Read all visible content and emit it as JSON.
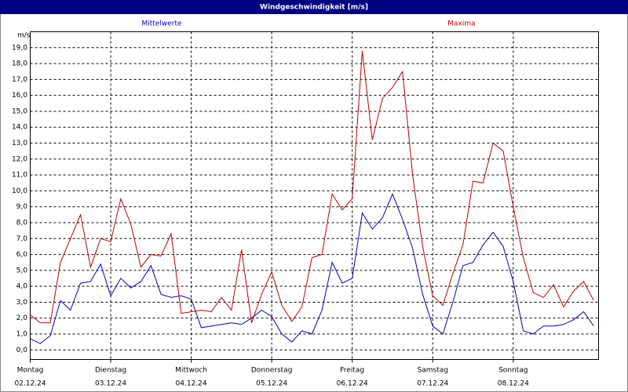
{
  "chart_data": {
    "type": "line",
    "title": "Windgeschwindigkeit [m/s]",
    "y_label": "m/s",
    "x": [
      0,
      0.125,
      0.25,
      0.375,
      0.5,
      0.625,
      0.75,
      0.875,
      1,
      1.125,
      1.25,
      1.375,
      1.5,
      1.625,
      1.75,
      1.875,
      2,
      2.125,
      2.25,
      2.375,
      2.5,
      2.625,
      2.75,
      2.875,
      3,
      3.125,
      3.25,
      3.375,
      3.5,
      3.625,
      3.75,
      3.875,
      4,
      4.125,
      4.25,
      4.375,
      4.5,
      4.625,
      4.75,
      4.875,
      5,
      5.125,
      5.25,
      5.375,
      5.5,
      5.625,
      5.75,
      5.875,
      6,
      6.125,
      6.25,
      6.375,
      6.5,
      6.625,
      6.75,
      6.875,
      7
    ],
    "series": [
      {
        "name": "Mittelwerte",
        "color": "#0000c0",
        "values": [
          0.7,
          0.4,
          0.9,
          3.1,
          2.5,
          4.2,
          4.3,
          5.4,
          3.4,
          4.5,
          3.9,
          4.3,
          5.3,
          3.5,
          3.3,
          3.4,
          3.2,
          1.4,
          1.5,
          1.6,
          1.7,
          1.6,
          2.0,
          2.5,
          2.1,
          1.0,
          0.5,
          1.2,
          1.0,
          2.5,
          5.5,
          4.2,
          4.5,
          8.6,
          7.6,
          8.3,
          9.8,
          8.2,
          6.4,
          3.5,
          1.5,
          1.0,
          3.0,
          5.3,
          5.5,
          6.6,
          7.4,
          6.5,
          4.3,
          1.2,
          1.0,
          1.5,
          1.5,
          1.6,
          1.9,
          2.4,
          1.5
        ]
      },
      {
        "name": "Maxima",
        "color": "#c00000",
        "values": [
          2.2,
          1.7,
          1.7,
          5.5,
          7.0,
          8.5,
          5.2,
          7.0,
          6.8,
          9.5,
          7.9,
          5.2,
          6.0,
          5.9,
          7.3,
          2.3,
          2.4,
          2.5,
          2.4,
          3.3,
          2.5,
          6.3,
          1.7,
          3.5,
          4.9,
          2.8,
          1.8,
          2.7,
          5.8,
          6.0,
          9.8,
          8.8,
          9.5,
          18.8,
          13.2,
          15.8,
          16.5,
          17.5,
          11.0,
          6.5,
          3.4,
          2.8,
          4.8,
          6.6,
          10.6,
          10.5,
          13.0,
          12.5,
          9.0,
          5.8,
          3.6,
          3.3,
          4.1,
          2.7,
          3.7,
          4.3,
          3.1
        ]
      }
    ],
    "xlim": [
      0,
      7.06
    ],
    "xticks": [
      {
        "value": 0,
        "label": "Montag",
        "date": "02.12.24"
      },
      {
        "value": 1,
        "label": "Dienstag",
        "date": "03.12.24"
      },
      {
        "value": 2,
        "label": "Mittwoch",
        "date": "04.12.24"
      },
      {
        "value": 3,
        "label": "Donnerstag",
        "date": "05.12.24"
      },
      {
        "value": 4,
        "label": "Freitag",
        "date": "06.12.24"
      },
      {
        "value": 5,
        "label": "Samstag",
        "date": "07.12.24"
      },
      {
        "value": 6,
        "label": "Sonntag",
        "date": "08.12.24"
      }
    ],
    "ylim": [
      -0.6,
      20
    ],
    "yticks": [
      {
        "value": 0,
        "label": "0,0"
      },
      {
        "value": 1,
        "label": "1,0"
      },
      {
        "value": 2,
        "label": "2,0"
      },
      {
        "value": 3,
        "label": "3,0"
      },
      {
        "value": 4,
        "label": "4,0"
      },
      {
        "value": 5,
        "label": "5,0"
      },
      {
        "value": 6,
        "label": "6,0"
      },
      {
        "value": 7,
        "label": "7,0"
      },
      {
        "value": 8,
        "label": "8,0"
      },
      {
        "value": 9,
        "label": "9,0"
      },
      {
        "value": 10,
        "label": "10,0"
      },
      {
        "value": 11,
        "label": "11,0"
      },
      {
        "value": 12,
        "label": "12,0"
      },
      {
        "value": 13,
        "label": "13,0"
      },
      {
        "value": 14,
        "label": "14,0"
      },
      {
        "value": 15,
        "label": "15,0"
      },
      {
        "value": 16,
        "label": "16,0"
      },
      {
        "value": 17,
        "label": "17,0"
      },
      {
        "value": 18,
        "label": "18,0"
      },
      {
        "value": 19,
        "label": "19,0"
      }
    ],
    "grid": true
  }
}
